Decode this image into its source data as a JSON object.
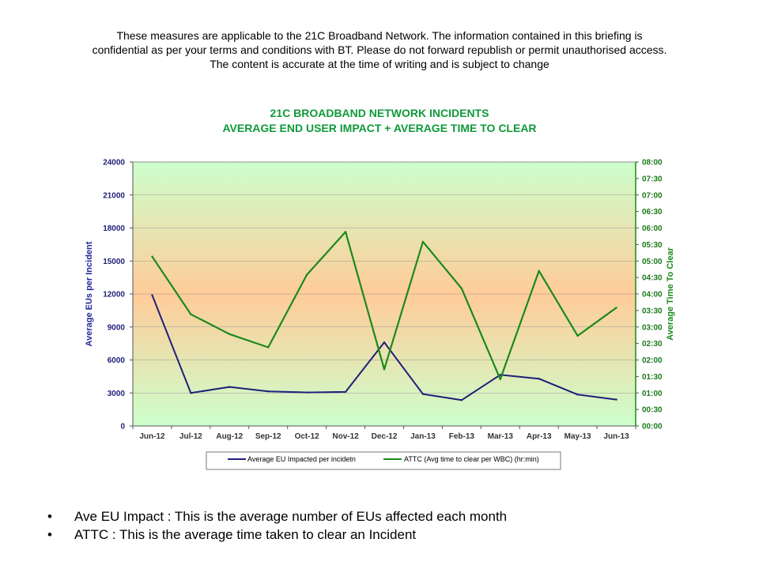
{
  "disclaimer": {
    "line1": "These measures are applicable to the 21C Broadband Network.  The information contained in this briefing is",
    "line2": "confidential as per your terms and conditions with BT.  Please do not forward republish or permit unauthorised access.",
    "line3": "The content is accurate at the time of writing and is subject to change"
  },
  "chart_data": {
    "type": "line",
    "title": "21C BROADBAND NETWORK INCIDENTS",
    "subtitle": "AVERAGE  END  USER  IMPACT + AVERAGE  TIME  TO  CLEAR",
    "categories": [
      "Jun-12",
      "Jul-12",
      "Aug-12",
      "Sep-12",
      "Oct-12",
      "Nov-12",
      "Dec-12",
      "Jan-13",
      "Feb-13",
      "Mar-13",
      "Apr-13",
      "May-13",
      "Jun-13"
    ],
    "ylabel": "Average EUs per Incident",
    "ylabel_right": "Average Time To Clear",
    "ylim": [
      0,
      24000
    ],
    "y_ticks": [
      "0",
      "3000",
      "6000",
      "9000",
      "12000",
      "15000",
      "18000",
      "21000",
      "24000"
    ],
    "ylim_right_minutes": [
      0,
      480
    ],
    "y2_ticks": [
      "00:00",
      "00:30",
      "01:00",
      "01:30",
      "02:00",
      "02:30",
      "03:00",
      "03:30",
      "04:00",
      "04:30",
      "05:00",
      "05:30",
      "06:00",
      "06:30",
      "07:00",
      "07:30",
      "08:00"
    ],
    "series": [
      {
        "name": "Average EU Impacted per incidetn",
        "axis": "left",
        "color": "#1f1f7a",
        "values": [
          11900,
          3000,
          3550,
          3150,
          3050,
          3100,
          7600,
          2900,
          2350,
          4650,
          4300,
          2850,
          2400
        ]
      },
      {
        "name": "ATTC (Avg time to clear per WBC) (hr:min)",
        "axis": "right",
        "color": "#1a8a1a",
        "values": [
          "05:08",
          "03:23",
          "02:47",
          "02:23",
          "04:35",
          "05:53",
          "01:43",
          "05:35",
          "04:10",
          "01:25",
          "04:42",
          "02:44",
          "03:35"
        ]
      }
    ],
    "grid": true,
    "legend_position": "bottom",
    "background_gradient": [
      "#ccffcc",
      "#ffcc99",
      "#ccffcc"
    ]
  },
  "bullets": [
    {
      "marker": "•",
      "text": "Ave EU Impact : This is the average number of EUs affected each month"
    },
    {
      "marker": "•",
      "text": "ATTC : This is the average time taken to clear an Incident"
    }
  ]
}
